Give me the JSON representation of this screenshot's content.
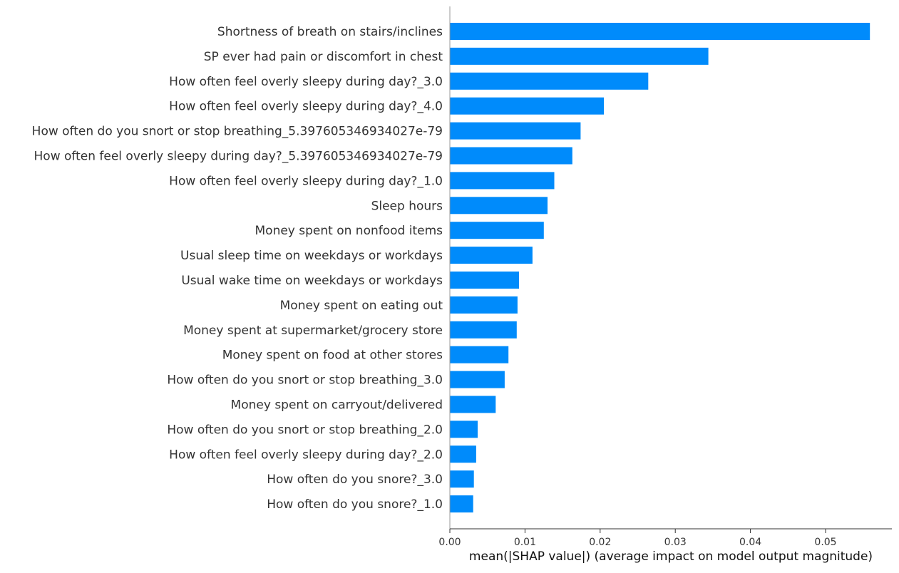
{
  "chart_data": {
    "type": "bar",
    "orientation": "horizontal",
    "title": "",
    "xlabel": "mean(|SHAP value|) (average impact on model output magnitude)",
    "ylabel": "",
    "xlim": [
      0,
      0.058
    ],
    "xticks": [
      0.0,
      0.01,
      0.02,
      0.03,
      0.04,
      0.05
    ],
    "xtick_labels": [
      "0.00",
      "0.01",
      "0.02",
      "0.03",
      "0.04",
      "0.05"
    ],
    "grid": false,
    "legend": "none",
    "bar_color": "#008bfb",
    "categories": [
      "Shortness of breath on stairs/inclines",
      "SP ever had pain or discomfort in chest",
      "How often feel overly sleepy during day?_3.0",
      "How often feel overly sleepy during day?_4.0",
      "How often do you snort or stop breathing_5.397605346934027e-79",
      "How often feel overly sleepy during day?_5.397605346934027e-79",
      "How often feel overly sleepy during day?_1.0",
      "Sleep hours",
      "Money spent on nonfood items",
      "Usual sleep time on weekdays or workdays",
      "Usual wake time on weekdays or workdays",
      "Money spent on eating out",
      "Money spent at supermarket/grocery store",
      "Money spent on food at other stores",
      "How often do you snort or stop breathing_3.0",
      "Money spent on carryout/delivered",
      "How often do you snort or stop breathing_2.0",
      "How often feel overly sleepy during day?_2.0",
      "How often do you snore?_3.0",
      "How often do you snore?_1.0"
    ],
    "values": [
      0.0559,
      0.0344,
      0.0264,
      0.0205,
      0.0174,
      0.0163,
      0.0139,
      0.013,
      0.0125,
      0.011,
      0.0092,
      0.009,
      0.0089,
      0.0078,
      0.0073,
      0.0061,
      0.0037,
      0.0035,
      0.0032,
      0.0031
    ]
  }
}
